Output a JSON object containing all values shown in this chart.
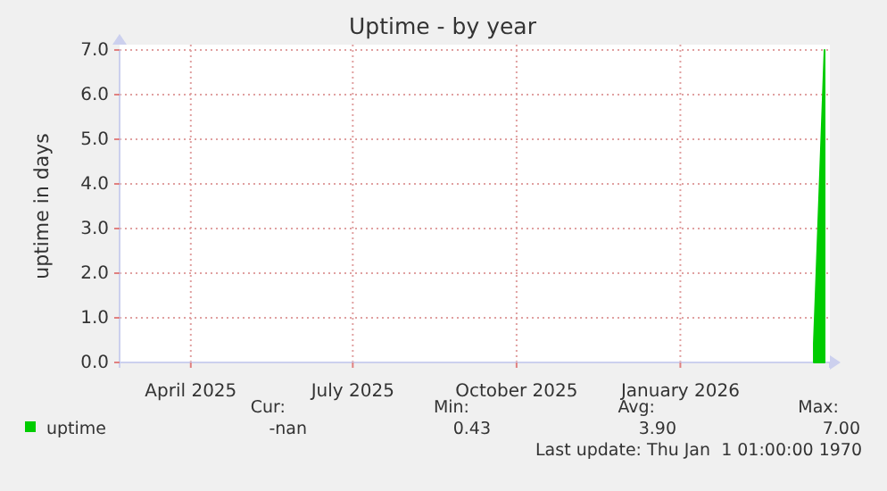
{
  "chart_data": {
    "type": "area",
    "title": "Uptime - by year",
    "ylabel": "uptime in days",
    "x": [
      "2026-03-17",
      "2026-03-18",
      "2026-03-19",
      "2026-03-20",
      "2026-03-21",
      "2026-03-22",
      "2026-03-23"
    ],
    "series": [
      {
        "name": "uptime",
        "color": "#00cc00",
        "values": [
          0.43,
          1.5,
          2.6,
          3.7,
          4.8,
          5.9,
          7.0
        ]
      }
    ],
    "xlim": [
      "2025-02-20",
      "2026-03-26"
    ],
    "xticks": [
      {
        "value": "2025-04-01",
        "label": "April 2025"
      },
      {
        "value": "2025-07-01",
        "label": "July 2025"
      },
      {
        "value": "2025-10-01",
        "label": "October 2025"
      },
      {
        "value": "2026-01-01",
        "label": "January 2026"
      }
    ],
    "ylim": [
      0,
      7
    ],
    "yticks": [
      {
        "value": 0,
        "label": "0.0"
      },
      {
        "value": 1,
        "label": "1.0"
      },
      {
        "value": 2,
        "label": "2.0"
      },
      {
        "value": 3,
        "label": "3.0"
      },
      {
        "value": 4,
        "label": "4.0"
      },
      {
        "value": 5,
        "label": "5.0"
      },
      {
        "value": 6,
        "label": "6.0"
      },
      {
        "value": 7,
        "label": "7.0"
      }
    ],
    "grid": true,
    "legend": "bottom left",
    "annotations": [
      "Cur:",
      "Min:",
      "Avg:",
      "Max:",
      "-nan",
      "0.43",
      "3.90",
      "7.00",
      "Last update: Thu Jan  1 01:00:00 1970"
    ]
  }
}
